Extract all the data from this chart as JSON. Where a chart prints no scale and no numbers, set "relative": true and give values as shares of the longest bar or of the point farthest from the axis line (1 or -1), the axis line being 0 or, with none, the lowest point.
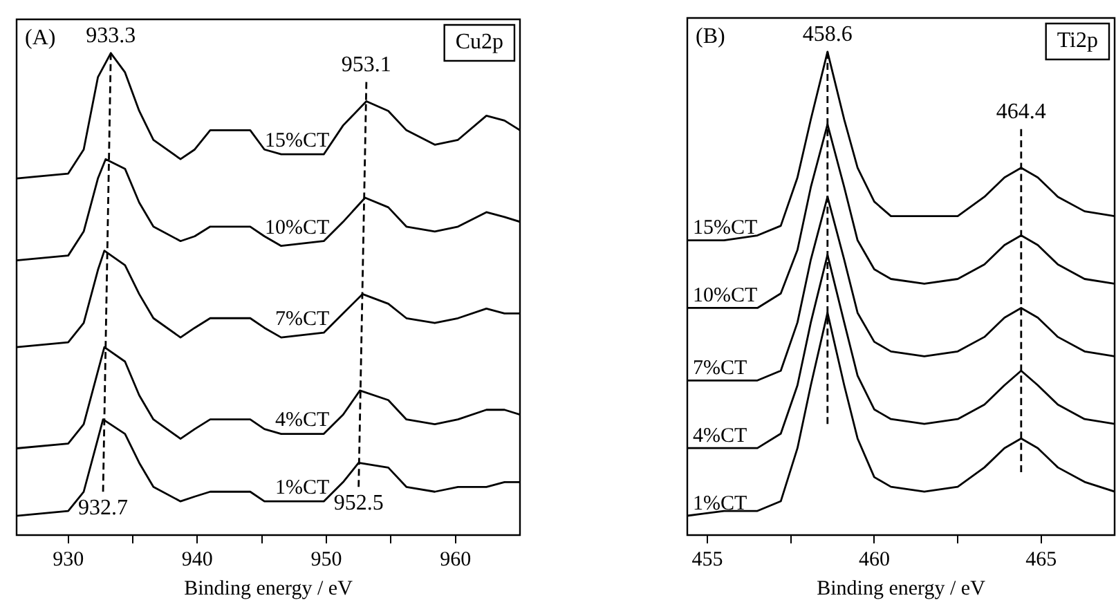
{
  "chart_data": [
    {
      "type": "line",
      "title": "(A)",
      "xlabel": "Binding energy / eV",
      "relative": true,
      "tick_labels": "x",
      "grid": false,
      "legend": false,
      "xlim": [
        926,
        965
      ],
      "xticks": [
        930,
        {
          "value": 935,
          "label": null
        },
        940,
        {
          "value": 945,
          "label": null
        },
        950,
        {
          "value": 955,
          "label": null
        },
        960
      ],
      "annotations": [
        "Cu2p",
        {
          "text": "933.3",
          "x": 933.3,
          "y": 1.0
        },
        {
          "text": "953.1",
          "x": 953.1,
          "y": 0.94
        },
        {
          "text": "932.7",
          "x": 932.7,
          "y": 0.09
        },
        {
          "text": "952.5",
          "x": 952.5,
          "y": 0.1
        }
      ],
      "series": [
        {
          "name": "15%CT",
          "color": "#000000",
          "x": [
            926,
            930,
            931.2,
            932.3,
            933.3,
            934.4,
            935.5,
            936.6,
            938.7,
            939.8,
            941,
            942.5,
            944.1,
            945.2,
            946.5,
            949.8,
            951.3,
            953.1,
            954.8,
            956.2,
            958.4,
            960.2,
            962.4,
            963.8,
            965
          ],
          "values": [
            0.74,
            0.75,
            0.8,
            0.95,
            1.0,
            0.96,
            0.88,
            0.82,
            0.78,
            0.8,
            0.84,
            0.84,
            0.84,
            0.8,
            0.79,
            0.79,
            0.85,
            0.9,
            0.88,
            0.84,
            0.81,
            0.82,
            0.87,
            0.86,
            0.84
          ]
        },
        {
          "name": "10%CT",
          "color": "#000000",
          "x": [
            926,
            930,
            931.2,
            932.3,
            932.9,
            934.4,
            935.5,
            936.6,
            938.7,
            939.8,
            941,
            942.5,
            944.1,
            945.2,
            946.5,
            949.8,
            951.3,
            953.0,
            954.8,
            956.2,
            958.4,
            960.2,
            962.4,
            963.8,
            965
          ],
          "values": [
            0.57,
            0.58,
            0.63,
            0.74,
            0.78,
            0.76,
            0.69,
            0.64,
            0.61,
            0.62,
            0.64,
            0.64,
            0.64,
            0.62,
            0.6,
            0.61,
            0.65,
            0.7,
            0.68,
            0.64,
            0.63,
            0.64,
            0.67,
            0.66,
            0.65
          ]
        },
        {
          "name": "7%CT",
          "color": "#000000",
          "x": [
            926,
            930,
            931.2,
            932.3,
            932.8,
            934.4,
            935.5,
            936.6,
            938.7,
            939.8,
            941,
            942.5,
            944.1,
            945.2,
            946.5,
            949.8,
            951.3,
            952.8,
            954.8,
            956.2,
            958.4,
            960.2,
            962.4,
            963.8,
            965
          ],
          "values": [
            0.39,
            0.4,
            0.44,
            0.55,
            0.59,
            0.56,
            0.5,
            0.45,
            0.41,
            0.43,
            0.45,
            0.45,
            0.45,
            0.43,
            0.41,
            0.42,
            0.46,
            0.5,
            0.48,
            0.45,
            0.44,
            0.45,
            0.47,
            0.46,
            0.46
          ]
        },
        {
          "name": "4%CT",
          "color": "#000000",
          "x": [
            926,
            930,
            931.2,
            932.3,
            932.8,
            934.4,
            935.5,
            936.6,
            938.7,
            939.8,
            941,
            942.5,
            944.1,
            945.2,
            946.5,
            949.8,
            951.3,
            952.6,
            954.8,
            956.2,
            958.4,
            960.2,
            962.4,
            963.8,
            965
          ],
          "values": [
            0.18,
            0.19,
            0.23,
            0.34,
            0.39,
            0.36,
            0.29,
            0.24,
            0.2,
            0.22,
            0.24,
            0.24,
            0.24,
            0.22,
            0.21,
            0.21,
            0.25,
            0.3,
            0.28,
            0.24,
            0.23,
            0.24,
            0.26,
            0.26,
            0.25
          ]
        },
        {
          "name": "1%CT",
          "color": "#000000",
          "x": [
            926,
            930,
            931.2,
            932.3,
            932.7,
            934.4,
            935.5,
            936.6,
            938.7,
            939.8,
            941,
            942.5,
            944.1,
            945.2,
            946.5,
            949.8,
            951.3,
            952.5,
            954.8,
            956.2,
            958.4,
            960.2,
            962.4,
            963.8,
            965
          ],
          "values": [
            0.04,
            0.05,
            0.09,
            0.2,
            0.24,
            0.21,
            0.15,
            0.1,
            0.07,
            0.08,
            0.09,
            0.09,
            0.09,
            0.07,
            0.07,
            0.07,
            0.11,
            0.15,
            0.14,
            0.1,
            0.09,
            0.1,
            0.1,
            0.11,
            0.11
          ]
        },
        {
          "type": "line",
          "color": "#000000",
          "line_style": "dashed",
          "x": [
            933.3,
            932.7
          ],
          "values": [
            1.0,
            0.09
          ]
        },
        {
          "type": "line",
          "color": "#000000",
          "line_style": "dashed",
          "x": [
            953.1,
            952.5
          ],
          "values": [
            0.94,
            0.1
          ]
        }
      ]
    },
    {
      "type": "line",
      "title": "(B)",
      "xlabel": "Binding energy / eV",
      "relative": true,
      "tick_labels": "x",
      "grid": false,
      "legend": false,
      "xlim": [
        454.4,
        467.2
      ],
      "xticks": [
        455,
        {
          "value": 457.5,
          "label": null
        },
        460,
        {
          "value": 462.5,
          "label": null
        },
        465
      ],
      "annotations": [
        "Ti2p",
        {
          "text": "458.6",
          "x": 458.6,
          "y": 1.0
        },
        {
          "text": "464.4",
          "x": 464.4,
          "y": 0.84
        }
      ],
      "x": [
        454.4,
        455.5,
        456.5,
        457.2,
        457.7,
        458.1,
        458.6,
        459.1,
        459.5,
        460.0,
        460.5,
        461.5,
        462.5,
        463.3,
        463.9,
        464.4,
        464.9,
        465.5,
        466.3,
        467.2
      ],
      "series": [
        {
          "name": "15%CT",
          "color": "#000000",
          "values": [
            0.61,
            0.61,
            0.62,
            0.64,
            0.74,
            0.86,
            1.0,
            0.86,
            0.76,
            0.69,
            0.66,
            0.66,
            0.66,
            0.7,
            0.74,
            0.76,
            0.74,
            0.7,
            0.67,
            0.66
          ]
        },
        {
          "name": "10%CT",
          "color": "#000000",
          "values": [
            0.47,
            0.47,
            0.47,
            0.5,
            0.59,
            0.72,
            0.85,
            0.72,
            0.61,
            0.55,
            0.53,
            0.52,
            0.53,
            0.56,
            0.6,
            0.62,
            0.6,
            0.56,
            0.53,
            0.52
          ]
        },
        {
          "name": "7%CT",
          "color": "#000000",
          "values": [
            0.32,
            0.32,
            0.32,
            0.34,
            0.44,
            0.57,
            0.7,
            0.57,
            0.46,
            0.4,
            0.38,
            0.37,
            0.38,
            0.41,
            0.45,
            0.47,
            0.45,
            0.41,
            0.38,
            0.37
          ]
        },
        {
          "name": "4%CT",
          "color": "#000000",
          "values": [
            0.18,
            0.18,
            0.18,
            0.21,
            0.31,
            0.44,
            0.58,
            0.44,
            0.33,
            0.26,
            0.24,
            0.23,
            0.24,
            0.27,
            0.31,
            0.34,
            0.31,
            0.27,
            0.24,
            0.23
          ]
        },
        {
          "name": "1%CT",
          "color": "#000000",
          "values": [
            0.04,
            0.05,
            0.05,
            0.07,
            0.18,
            0.31,
            0.46,
            0.31,
            0.2,
            0.12,
            0.1,
            0.09,
            0.1,
            0.14,
            0.18,
            0.2,
            0.18,
            0.14,
            0.11,
            0.09
          ]
        },
        {
          "type": "line",
          "color": "#000000",
          "line_style": "dashed",
          "x": [
            458.6,
            458.6
          ],
          "values": [
            1.0,
            0.23
          ]
        },
        {
          "type": "line",
          "color": "#000000",
          "line_style": "dashed",
          "x": [
            464.4,
            464.4
          ],
          "values": [
            0.84,
            0.13
          ]
        }
      ]
    }
  ]
}
